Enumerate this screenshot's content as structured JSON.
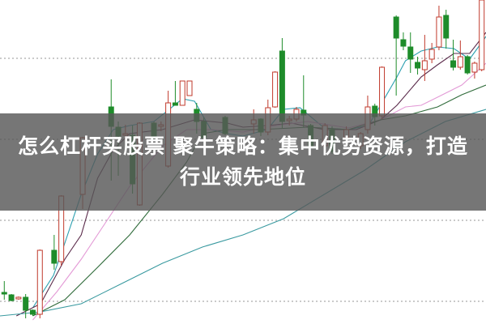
{
  "headline": {
    "line1": "怎么杠杆买股票 聚牛策略：集中优势资源，打造",
    "line2": "行业领先地位"
  },
  "colors": {
    "up": "#c0392b",
    "down": "#1e8c2a",
    "grid": "#aaaaaa",
    "banner": "#585858"
  },
  "chart_data": {
    "type": "candlestick",
    "title": "",
    "xlabel": "",
    "ylabel": "",
    "grid": true,
    "gridlines": [
      1,
      2,
      3,
      4
    ],
    "xlim": [
      -0.6,
      67.6
    ],
    "ylim": [
      0.72,
      4.72
    ],
    "candle_fields": [
      "index",
      "open",
      "high",
      "low",
      "close"
    ],
    "candles": [
      [
        0,
        1.11,
        1.25,
        1.02,
        1.09
      ],
      [
        1,
        1.08,
        1.09,
        1.0,
        1.01
      ],
      [
        2,
        1.03,
        1.06,
        1.02,
        1.05
      ],
      [
        3,
        1.05,
        1.09,
        0.79,
        0.89
      ],
      [
        4,
        0.89,
        0.9,
        0.82,
        0.84
      ],
      [
        5,
        0.84,
        1.64,
        0.79,
        1.63
      ],
      [
        7,
        1.63,
        1.82,
        1.39,
        1.47
      ],
      [
        8,
        1.49,
        2.31,
        1.44,
        2.3
      ],
      [
        11,
        2.32,
        3.03,
        2.14,
        3.02
      ],
      [
        15,
        3.4,
        3.74,
        2.49,
        3.16
      ],
      [
        16,
        3.15,
        3.22,
        2.55,
        3.04
      ],
      [
        17,
        3.05,
        3.18,
        2.99,
        3.07
      ],
      [
        18,
        3.05,
        3.17,
        2.33,
        2.45
      ],
      [
        19,
        2.19,
        3.21,
        2.18,
        3.2
      ],
      [
        21,
        3.2,
        3.22,
        3.0,
        3.02
      ],
      [
        22,
        3.16,
        3.22,
        3.1,
        3.18
      ],
      [
        23,
        2.67,
        3.6,
        2.65,
        3.45
      ],
      [
        24,
        3.45,
        3.72,
        3.42,
        3.42
      ],
      [
        25,
        3.42,
        3.72,
        3.42,
        3.72
      ],
      [
        26,
        3.54,
        3.72,
        3.54,
        3.72
      ],
      [
        27,
        3.37,
        3.45,
        3.07,
        3.22
      ],
      [
        28,
        3.22,
        3.27,
        2.92,
        3.02
      ],
      [
        31,
        3.27,
        3.29,
        3.05,
        3.07
      ],
      [
        35,
        3.19,
        3.37,
        3.07,
        3.24
      ],
      [
        36,
        3.25,
        3.26,
        3.04,
        3.09
      ],
      [
        37,
        3.09,
        3.49,
        3.05,
        3.39
      ],
      [
        38,
        3.4,
        3.84,
        3.39,
        3.83
      ],
      [
        39,
        4.09,
        4.25,
        3.14,
        3.22
      ],
      [
        40,
        3.23,
        3.29,
        3.17,
        3.25
      ],
      [
        41,
        3.25,
        3.4,
        3.22,
        3.37
      ],
      [
        42,
        3.36,
        3.79,
        3.15,
        3.3
      ],
      [
        43,
        3.17,
        3.19,
        2.9,
        2.92
      ],
      [
        45,
        2.92,
        3.2,
        2.9,
        3.17
      ],
      [
        46,
        3.12,
        3.16,
        2.82,
        2.85
      ],
      [
        48,
        3.02,
        3.16,
        3.0,
        3.12
      ],
      [
        50,
        2.92,
        3.09,
        2.88,
        3.07
      ],
      [
        51,
        3.12,
        3.54,
        3.07,
        3.4
      ],
      [
        52,
        3.41,
        3.44,
        3.17,
        3.28
      ],
      [
        53,
        3.29,
        3.9,
        3.25,
        3.89
      ],
      [
        55,
        4.51,
        4.53,
        3.54,
        4.25
      ],
      [
        56,
        4.23,
        4.32,
        4.1,
        4.15
      ],
      [
        57,
        4.14,
        4.32,
        3.82,
        3.99
      ],
      [
        58,
        3.95,
        4.02,
        3.8,
        3.88
      ],
      [
        59,
        3.86,
        4.29,
        3.72,
        3.97
      ],
      [
        60,
        3.99,
        4.19,
        3.94,
        4.11
      ],
      [
        61,
        4.14,
        4.65,
        4.1,
        4.51
      ],
      [
        62,
        4.53,
        4.6,
        4.12,
        4.25
      ],
      [
        63,
        3.97,
        4.23,
        3.85,
        3.89
      ],
      [
        64,
        3.89,
        4.22,
        3.86,
        4.02
      ],
      [
        65,
        4.02,
        4.04,
        3.8,
        3.82
      ],
      [
        66,
        3.83,
        3.96,
        3.75,
        3.94
      ],
      [
        67,
        3.86,
        4.72,
        3.84,
        4.72
      ]
    ],
    "series": [
      {
        "color": "#2a9fb0",
        "points": [
          [
            4.0,
            0.92
          ],
          [
            6.9,
            1.32
          ],
          [
            8.5,
            1.72
          ],
          [
            10.8,
            2.32
          ],
          [
            13.1,
            2.82
          ],
          [
            15.3,
            3.12
          ],
          [
            17.6,
            3.17
          ],
          [
            21.0,
            3.22
          ],
          [
            25.0,
            3.5
          ],
          [
            26.7,
            3.47
          ],
          [
            29.0,
            3.12
          ],
          [
            31.3,
            3.07
          ],
          [
            33.5,
            3.04
          ],
          [
            36.9,
            3.12
          ],
          [
            39.2,
            3.37
          ],
          [
            41.5,
            3.39
          ],
          [
            44.9,
            3.14
          ],
          [
            48.3,
            3.12
          ],
          [
            51.1,
            3.17
          ],
          [
            52.8,
            3.42
          ],
          [
            55.1,
            3.77
          ],
          [
            56.3,
            3.97
          ],
          [
            58.5,
            4.09
          ],
          [
            60.8,
            4.14
          ],
          [
            63.1,
            4.12
          ],
          [
            65.3,
            3.99
          ],
          [
            67.6,
            4.27
          ]
        ]
      },
      {
        "color": "#5a2a4a",
        "points": [
          [
            1.7,
            0.82
          ],
          [
            5.1,
            0.97
          ],
          [
            8.5,
            1.52
          ],
          [
            10.8,
            1.82
          ],
          [
            13.1,
            2.52
          ],
          [
            15.3,
            2.87
          ],
          [
            17.6,
            3.07
          ],
          [
            22.2,
            3.12
          ],
          [
            26.7,
            3.24
          ],
          [
            31.3,
            3.2
          ],
          [
            33.5,
            3.15
          ],
          [
            36.9,
            3.17
          ],
          [
            40.3,
            3.2
          ],
          [
            44.9,
            3.12
          ],
          [
            49.4,
            3.12
          ],
          [
            52.8,
            3.24
          ],
          [
            55.1,
            3.42
          ],
          [
            58.5,
            3.77
          ],
          [
            60.8,
            3.92
          ],
          [
            63.1,
            4.06
          ],
          [
            65.3,
            4.06
          ],
          [
            67.6,
            4.32
          ]
        ]
      },
      {
        "color": "#e39ad6",
        "points": [
          [
            4.0,
            0.77
          ],
          [
            7.4,
            1.12
          ],
          [
            10.8,
            1.52
          ],
          [
            14.2,
            1.97
          ],
          [
            17.6,
            2.42
          ],
          [
            22.2,
            2.92
          ],
          [
            25.6,
            3.12
          ],
          [
            29.0,
            3.12
          ],
          [
            33.5,
            3.09
          ],
          [
            38.1,
            3.17
          ],
          [
            42.6,
            3.22
          ],
          [
            48.3,
            3.14
          ],
          [
            52.8,
            3.24
          ],
          [
            56.3,
            3.4
          ],
          [
            58.5,
            3.42
          ],
          [
            60.8,
            3.52
          ],
          [
            64.2,
            3.67
          ],
          [
            67.6,
            3.94
          ]
        ]
      },
      {
        "color": "#2f6b3a",
        "points": [
          [
            4.0,
            0.82
          ],
          [
            8.5,
            1.02
          ],
          [
            13.1,
            1.42
          ],
          [
            17.6,
            1.82
          ],
          [
            22.2,
            2.32
          ],
          [
            25.6,
            2.72
          ],
          [
            27.8,
            3.07
          ],
          [
            31.3,
            3.12
          ],
          [
            35.8,
            3.12
          ],
          [
            42.6,
            3.15
          ],
          [
            48.3,
            3.12
          ],
          [
            52.8,
            3.24
          ],
          [
            56.3,
            3.29
          ],
          [
            60.8,
            3.4
          ],
          [
            64.2,
            3.55
          ],
          [
            67.6,
            3.67
          ]
        ]
      },
      {
        "color": "#3a9aa0",
        "points": [
          [
            -0.6,
            0.82
          ],
          [
            5.1,
            0.87
          ],
          [
            10.8,
            0.97
          ],
          [
            16.5,
            1.22
          ],
          [
            22.2,
            1.47
          ],
          [
            27.8,
            1.67
          ],
          [
            33.5,
            1.82
          ],
          [
            39.2,
            2.02
          ],
          [
            44.9,
            2.32
          ],
          [
            50.6,
            2.62
          ],
          [
            56.3,
            2.97
          ],
          [
            61.9,
            3.22
          ],
          [
            67.6,
            3.37
          ]
        ]
      }
    ]
  }
}
